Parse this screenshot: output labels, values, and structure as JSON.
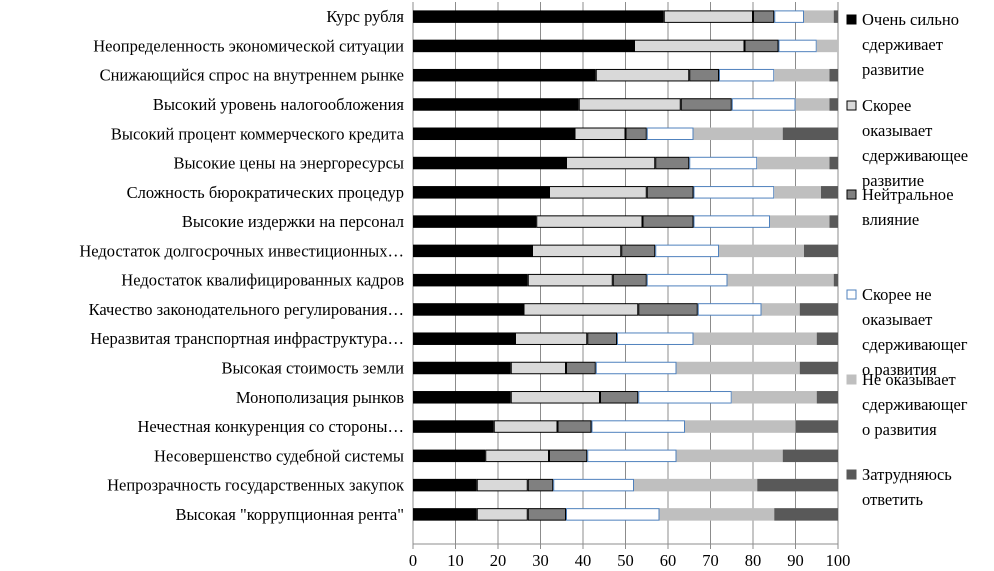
{
  "chart_data": {
    "type": "bar",
    "orientation": "horizontal",
    "stacked": true,
    "title": "",
    "xlabel": "",
    "ylabel": "",
    "xlim": [
      0,
      100
    ],
    "xticks": [
      "0",
      "10",
      "20",
      "30",
      "40",
      "50",
      "60",
      "70",
      "80",
      "90",
      "100"
    ],
    "grid": true,
    "legend_position": "right",
    "categories": [
      "Курс рубля",
      "Неопределенность экономической ситуации",
      "Снижающийся спрос на внутреннем рынке",
      "Высокий уровень налогообложения",
      "Высокий процент коммерческого кредита",
      "Высокие цены на энергоресурсы",
      "Сложность бюрократических процедур",
      "Высокие издержки на персонал",
      "Недостаток долгосрочных инвестиционных…",
      "Недостаток квалифицированных кадров",
      "Качество законодательного регулирования…",
      "Неразвитая транспортная инфраструктура…",
      "Высокая стоимость земли",
      "Монополизация рынков",
      "Нечестная конкуренция со стороны…",
      "Несовершенство судебной системы",
      "Непрозрачность государственных закупок",
      "Высокая \"коррупционная рента\""
    ],
    "series": [
      {
        "name": "Очень сильно сдерживает развитие",
        "legend_lines": [
          "Очень сильно",
          "сдерживает",
          "развитие"
        ],
        "fill": "#000000",
        "stroke": "#000000",
        "values": [
          59,
          52,
          43,
          39,
          38,
          36,
          32,
          29,
          28,
          27,
          26,
          24,
          23,
          23,
          19,
          17,
          15,
          15
        ]
      },
      {
        "name": "Скорее оказывает сдерживающее развитие",
        "legend_lines": [
          "Скорее",
          "оказывает",
          "сдерживающее",
          "развитие"
        ],
        "fill": "#d9d9d9",
        "stroke": "#000000",
        "values": [
          21,
          26,
          22,
          24,
          12,
          21,
          23,
          25,
          21,
          20,
          27,
          17,
          13,
          21,
          15,
          15,
          12,
          12
        ]
      },
      {
        "name": "Нейтральное влияние",
        "legend_lines": [
          "Нейтральное",
          "влияние"
        ],
        "fill": "#808080",
        "stroke": "#000000",
        "values": [
          5,
          8,
          7,
          12,
          5,
          8,
          11,
          12,
          8,
          8,
          14,
          7,
          7,
          9,
          8,
          9,
          6,
          9
        ]
      },
      {
        "name": "Скорее не оказывает сдерживающего развития",
        "legend_lines": [
          "Скорее не",
          "оказывает",
          "сдерживающег",
          "о развития"
        ],
        "fill": "#ffffff",
        "stroke": "#4f81bd",
        "values": [
          7,
          9,
          13,
          15,
          11,
          16,
          19,
          18,
          15,
          19,
          15,
          18,
          19,
          22,
          22,
          21,
          19,
          22
        ]
      },
      {
        "name": "Не оказывает сдерживающего развития",
        "legend_lines": [
          "Не оказывает",
          "сдерживающег",
          "о развития"
        ],
        "fill": "#bfbfbf",
        "stroke": "#bfbfbf",
        "values": [
          7,
          5,
          13,
          8,
          21,
          17,
          11,
          14,
          20,
          25,
          9,
          29,
          29,
          20,
          26,
          25,
          29,
          27
        ]
      },
      {
        "name": "Затрудняюсь ответить",
        "legend_lines": [
          "Затрудняюсь",
          "ответить"
        ],
        "fill": "#595959",
        "stroke": "#595959",
        "values": [
          1,
          0,
          2,
          2,
          13,
          2,
          4,
          2,
          8,
          1,
          9,
          5,
          9,
          5,
          10,
          13,
          19,
          15
        ]
      }
    ]
  }
}
